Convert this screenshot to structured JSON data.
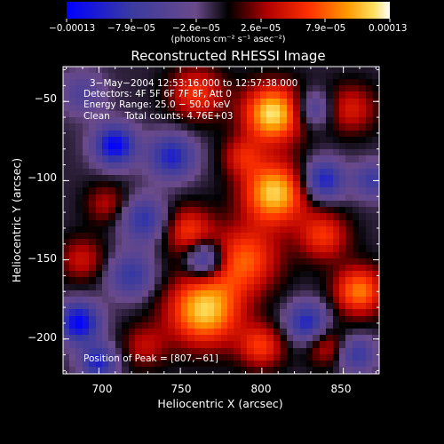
{
  "chart_data": {
    "type": "heatmap",
    "title": "Reconstructed RHESSI Image",
    "xlabel": "Heliocentric X (arcsec)",
    "ylabel": "Heliocentric Y (arcsec)",
    "xlim": [
      678,
      872
    ],
    "ylim": [
      -222,
      -28
    ],
    "x_ticks": [
      {
        "value": 700,
        "label": "700"
      },
      {
        "value": 750,
        "label": "750"
      },
      {
        "value": 800,
        "label": "800"
      },
      {
        "value": 850,
        "label": "850"
      }
    ],
    "y_ticks": [
      {
        "value": -50,
        "label": "−50"
      },
      {
        "value": -100,
        "label": "−100"
      },
      {
        "value": -150,
        "label": "−150"
      },
      {
        "value": -200,
        "label": "−200"
      }
    ],
    "colorbar": {
      "range": [
        -0.00013,
        0.00013
      ],
      "tick_labels": [
        "−0.00013",
        "−7.9e−05",
        "−2.6e−05",
        "2.6e−05",
        "7.9e−05",
        "0.00013"
      ],
      "units_label": "(photons cm⁻² s⁻¹ asec⁻²)"
    },
    "annotations": {
      "time_range": "3−May−2004 12:53:16.000 to 12:57:38.000",
      "detectors": "Detectors: 4F 5F 6F 7F 8F, Att 0",
      "energy": "Energy Range: 25.0 − 50.0 keV",
      "clean": "Clean     Total counts: 4.76E+03",
      "peak": "Position of Peak = [807,−61]"
    },
    "peak": {
      "x": 807,
      "y": -61
    },
    "blobs": [
      {
        "x": 807,
        "y": -58,
        "a": 1.0,
        "s": 13
      },
      {
        "x": 808,
        "y": -108,
        "a": 0.95,
        "s": 14
      },
      {
        "x": 765,
        "y": -182,
        "a": 0.95,
        "s": 16
      },
      {
        "x": 790,
        "y": -150,
        "a": 0.65,
        "s": 15
      },
      {
        "x": 755,
        "y": -132,
        "a": 0.55,
        "s": 11
      },
      {
        "x": 860,
        "y": -170,
        "a": 0.75,
        "s": 11
      },
      {
        "x": 838,
        "y": -135,
        "a": 0.55,
        "s": 11
      },
      {
        "x": 855,
        "y": -55,
        "a": 0.45,
        "s": 11
      },
      {
        "x": 760,
        "y": -45,
        "a": 0.55,
        "s": 12
      },
      {
        "x": 690,
        "y": -150,
        "a": 0.4,
        "s": 10
      },
      {
        "x": 705,
        "y": -115,
        "a": 0.35,
        "s": 9
      },
      {
        "x": 728,
        "y": -205,
        "a": 0.35,
        "s": 10
      },
      {
        "x": 800,
        "y": -205,
        "a": 0.55,
        "s": 10
      },
      {
        "x": 840,
        "y": -205,
        "a": 0.4,
        "s": 9
      },
      {
        "x": 788,
        "y": -85,
        "a": 0.4,
        "s": 9
      },
      {
        "x": 710,
        "y": -78,
        "a": -0.9,
        "s": 9
      },
      {
        "x": 745,
        "y": -85,
        "a": -0.7,
        "s": 10
      },
      {
        "x": 728,
        "y": -125,
        "a": -0.6,
        "s": 10
      },
      {
        "x": 688,
        "y": -190,
        "a": -0.9,
        "s": 9
      },
      {
        "x": 700,
        "y": -215,
        "a": -0.7,
        "s": 8
      },
      {
        "x": 720,
        "y": -160,
        "a": -0.55,
        "s": 10
      },
      {
        "x": 765,
        "y": -150,
        "a": -0.75,
        "s": 8
      },
      {
        "x": 838,
        "y": -100,
        "a": -0.75,
        "s": 9
      },
      {
        "x": 828,
        "y": -190,
        "a": -0.7,
        "s": 9
      },
      {
        "x": 858,
        "y": -210,
        "a": -0.55,
        "s": 8
      },
      {
        "x": 832,
        "y": -55,
        "a": -0.5,
        "s": 8
      },
      {
        "x": 868,
        "y": -100,
        "a": -0.5,
        "s": 8
      },
      {
        "x": 690,
        "y": -45,
        "a": -0.35,
        "s": 10
      }
    ]
  }
}
